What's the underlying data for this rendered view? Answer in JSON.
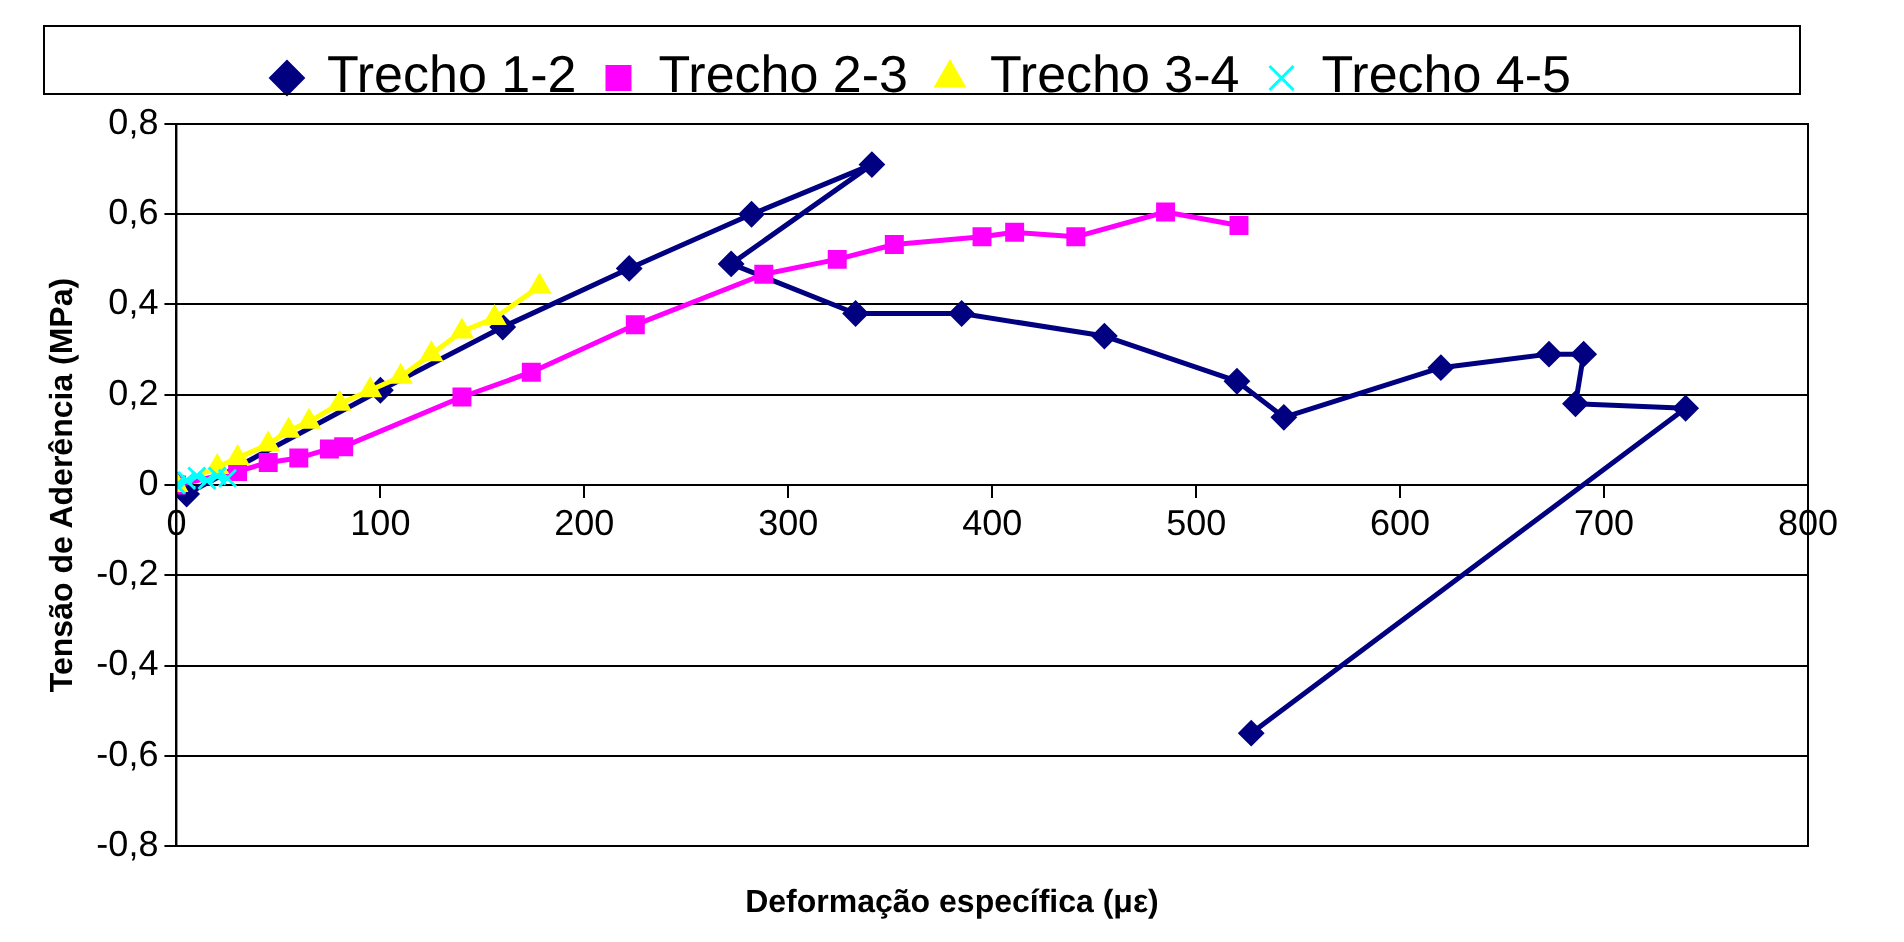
{
  "chart_data": {
    "type": "line",
    "xlabel": "Deformação específica (με)",
    "ylabel": "Tensão de Aderência (MPa)",
    "xlim": [
      0,
      800
    ],
    "xticks": [
      0,
      100,
      200,
      300,
      400,
      500,
      600,
      700,
      800
    ],
    "ylim": [
      -0.8,
      0.8
    ],
    "yticks": [
      {
        "value": -0.8,
        "label": "-0,8"
      },
      {
        "value": -0.6,
        "label": "-0,6"
      },
      {
        "value": -0.4,
        "label": "-0,4"
      },
      {
        "value": -0.2,
        "label": "-0,2"
      },
      0,
      {
        "value": 0.2,
        "label": "0,2"
      },
      {
        "value": 0.4,
        "label": "0,4"
      },
      {
        "value": 0.6,
        "label": "0,6"
      },
      {
        "value": 0.8,
        "label": "0,8"
      }
    ],
    "grid": "y",
    "legend": "top",
    "line_style": "solid",
    "series": [
      {
        "name": "Trecho 1-2",
        "color": "#000080",
        "marker": "diamond",
        "x": [
          0,
          5,
          100,
          160,
          222,
          282,
          341,
          272,
          333,
          385,
          455,
          520,
          543,
          620,
          673,
          690,
          686,
          740,
          527
        ],
        "values": [
          0,
          -0.02,
          0.21,
          0.35,
          0.48,
          0.6,
          0.71,
          0.49,
          0.38,
          0.38,
          0.33,
          0.23,
          0.15,
          0.26,
          0.29,
          0.29,
          0.18,
          0.17,
          -0.55
        ]
      },
      {
        "name": "Trecho 2-3",
        "color": "#ff00ff",
        "marker": "square",
        "x": [
          0,
          30,
          45,
          60,
          75,
          82,
          140,
          174,
          225,
          288,
          324,
          352,
          395,
          411,
          441,
          485,
          521
        ],
        "values": [
          0,
          0.03,
          0.05,
          0.06,
          0.08,
          0.085,
          0.195,
          0.25,
          0.355,
          0.467,
          0.5,
          0.533,
          0.55,
          0.56,
          0.55,
          0.605,
          0.575
        ]
      },
      {
        "name": "Trecho 3-4",
        "color": "#ffff00",
        "marker": "triangle",
        "x": [
          0,
          20,
          30,
          45,
          55,
          65,
          80,
          95,
          110,
          125,
          140,
          156,
          178
        ],
        "values": [
          0,
          0.04,
          0.06,
          0.09,
          0.12,
          0.14,
          0.18,
          0.21,
          0.24,
          0.29,
          0.34,
          0.37,
          0.44
        ]
      },
      {
        "name": "Trecho 4-5",
        "color": "#00ffff",
        "marker": "cross",
        "x": [
          0,
          5,
          10,
          15,
          20,
          25
        ],
        "values": [
          0,
          0.01,
          0.02,
          0.01,
          0.02,
          0.015
        ]
      }
    ]
  }
}
